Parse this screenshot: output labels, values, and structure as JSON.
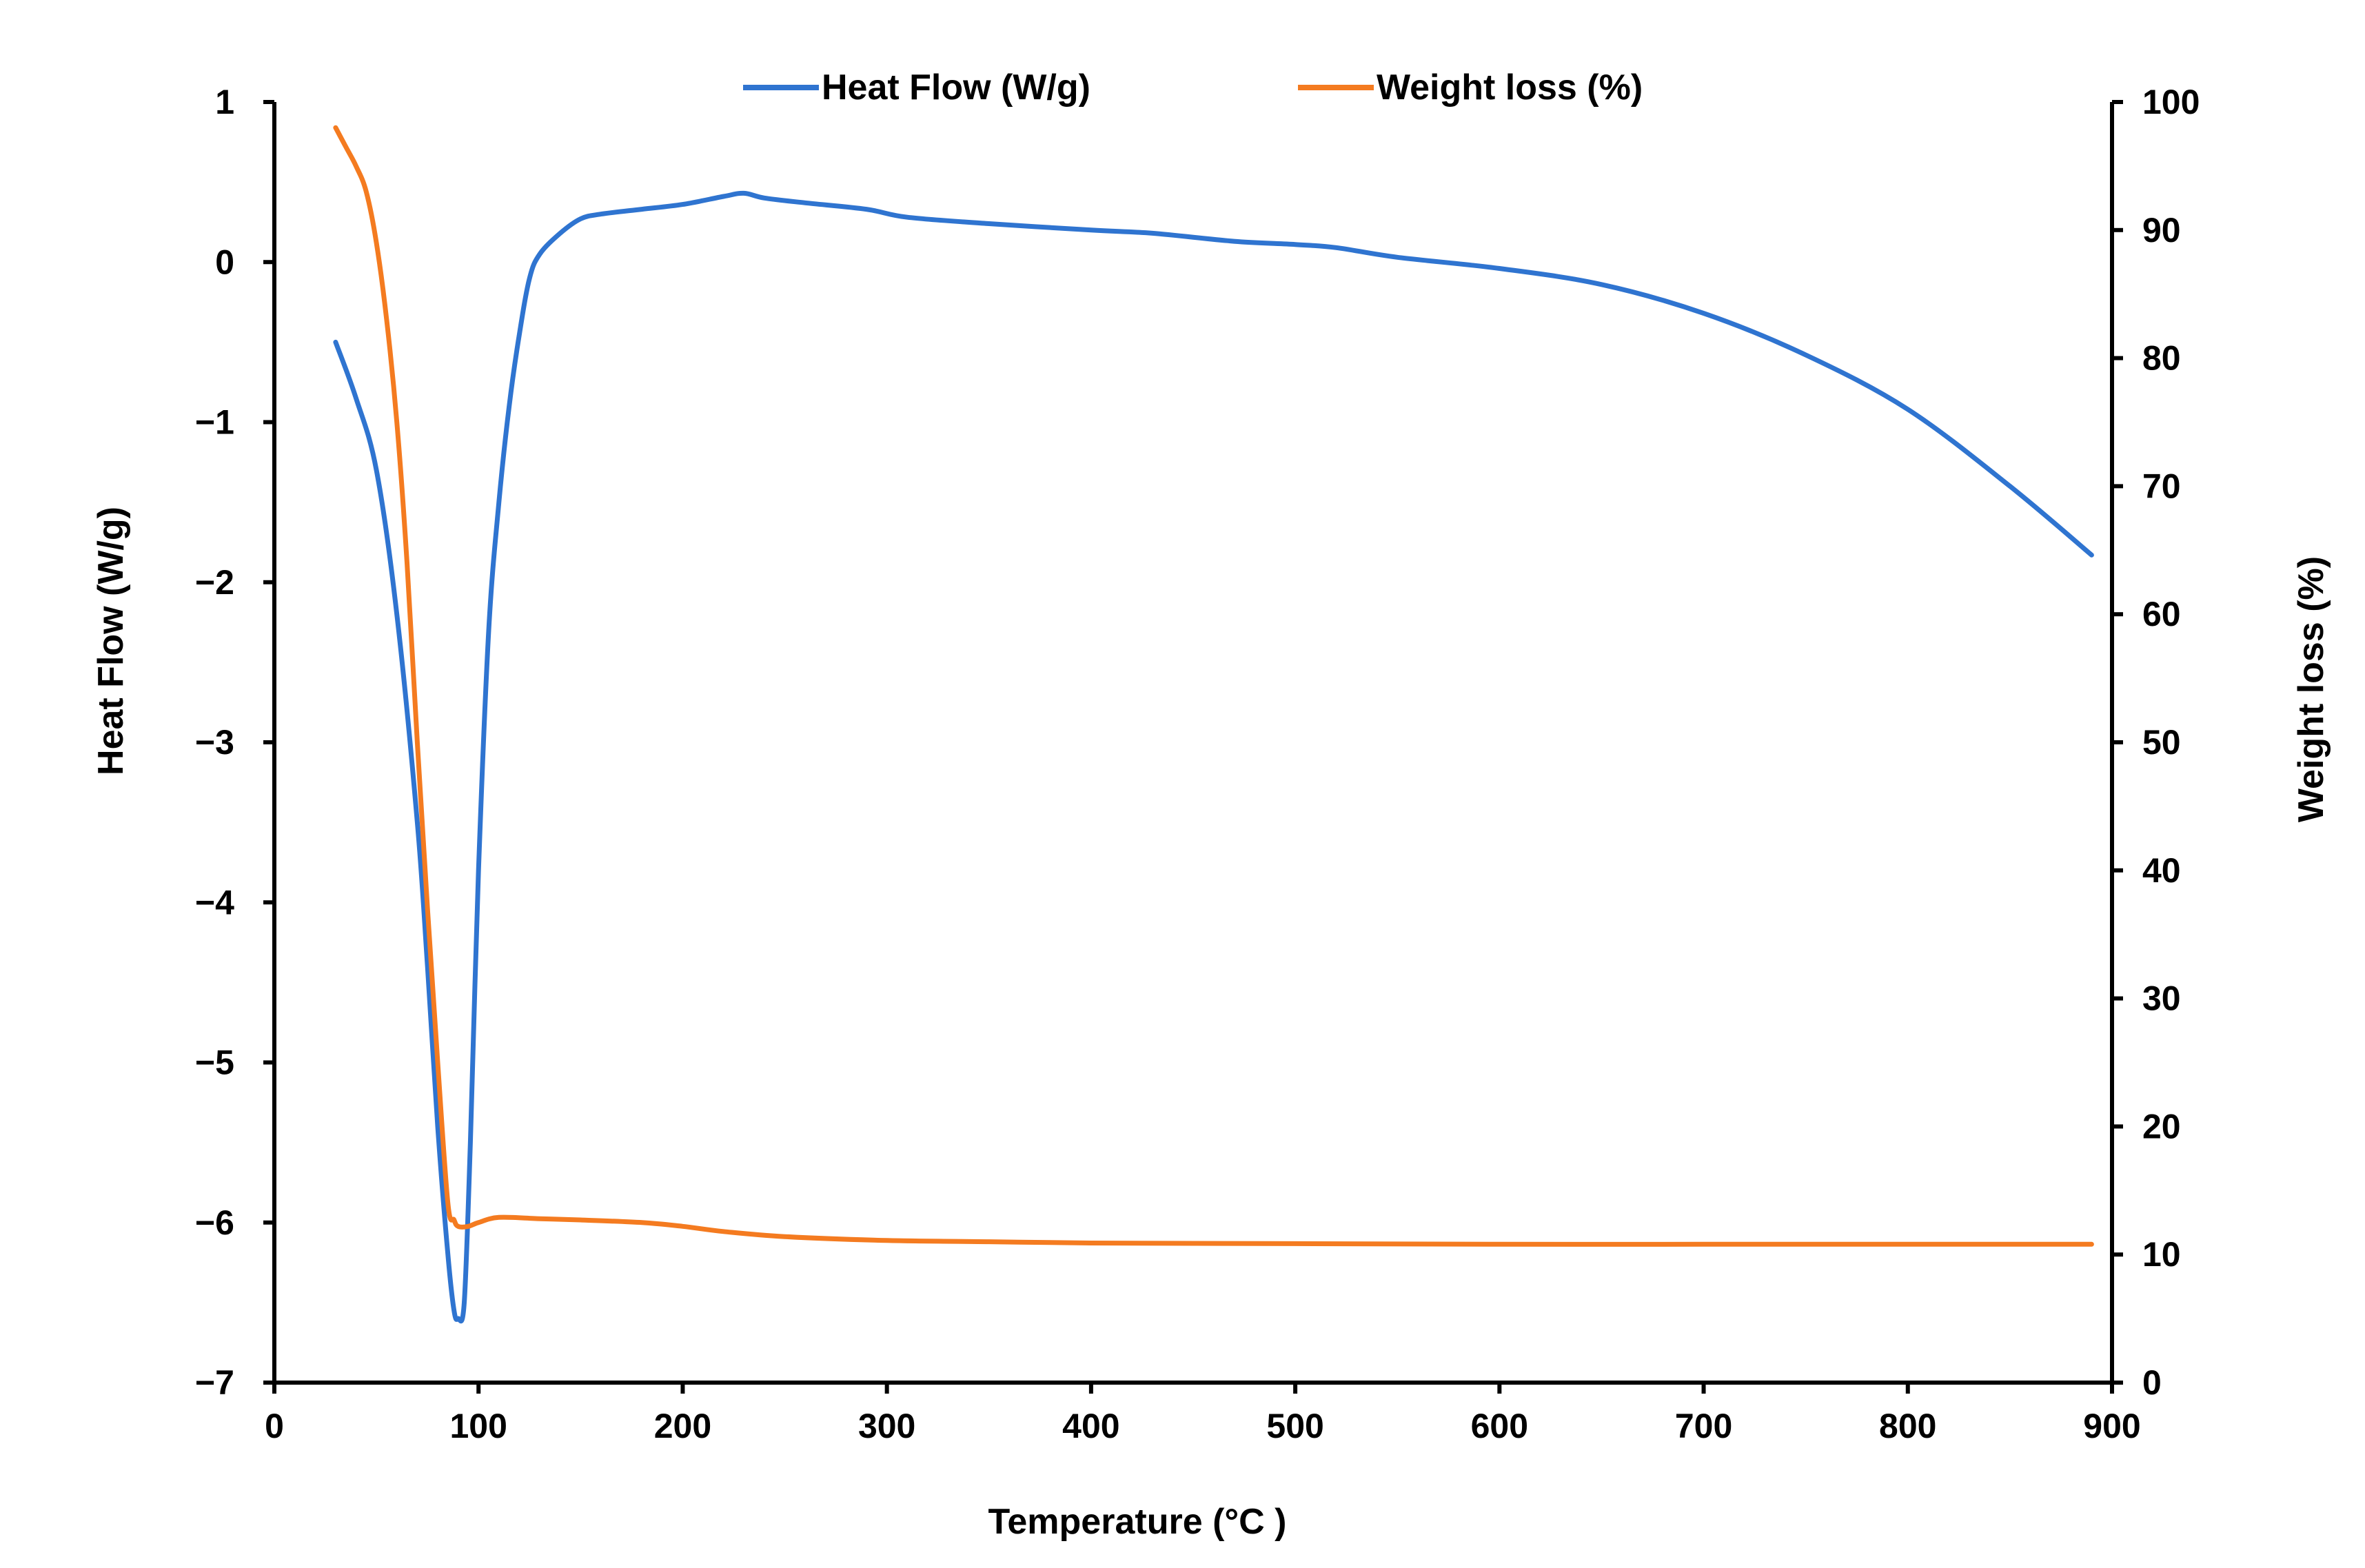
{
  "chart_data": {
    "type": "line",
    "title": "",
    "xlabel": "Temperature (°C )",
    "ylabel_left": "Heat Flow (W/g)",
    "ylabel_right": "Weight loss (%)",
    "xlim": [
      0,
      900
    ],
    "ylim_left": [
      -7,
      1
    ],
    "ylim_right": [
      0,
      100
    ],
    "x_ticks": [
      "0",
      "100",
      "200",
      "300",
      "400",
      "500",
      "600",
      "700",
      "800",
      "900"
    ],
    "y_left_ticks": [
      "1",
      "0",
      "−1",
      "−2",
      "−3",
      "−4",
      "−5",
      "−6",
      "−7"
    ],
    "y_right_ticks": [
      "100",
      "90",
      "80",
      "70",
      "60",
      "50",
      "40",
      "30",
      "20",
      "10",
      "0"
    ],
    "grid": false,
    "legend_position": "top-center",
    "series": [
      {
        "name": "Heat Flow (W/g)",
        "axis": "left",
        "color": "#2F74D0",
        "x": [
          30,
          40,
          50,
          60,
          70,
          75,
          80,
          85,
          88,
          90,
          93,
          96,
          100,
          105,
          110,
          115,
          120,
          125,
          130,
          140,
          150,
          160,
          180,
          200,
          220,
          230,
          240,
          260,
          290,
          310,
          350,
          400,
          430,
          470,
          500,
          520,
          550,
          600,
          650,
          700,
          750,
          800,
          850,
          890
        ],
        "values": [
          -0.5,
          -0.85,
          -1.3,
          -2.2,
          -3.5,
          -4.4,
          -5.4,
          -6.2,
          -6.55,
          -6.6,
          -6.5,
          -5.5,
          -3.8,
          -2.3,
          -1.5,
          -0.9,
          -0.45,
          -0.1,
          0.05,
          0.18,
          0.27,
          0.3,
          0.33,
          0.36,
          0.41,
          0.43,
          0.4,
          0.37,
          0.33,
          0.28,
          0.24,
          0.2,
          0.18,
          0.13,
          0.11,
          0.09,
          0.03,
          -0.04,
          -0.14,
          -0.32,
          -0.58,
          -0.92,
          -1.4,
          -1.83
        ]
      },
      {
        "name": "Weight loss (%)",
        "axis": "right",
        "color": "#F47B20",
        "x": [
          30,
          35,
          40,
          45,
          50,
          55,
          60,
          65,
          70,
          75,
          80,
          85,
          88,
          90,
          95,
          100,
          110,
          130,
          150,
          180,
          200,
          220,
          250,
          300,
          350,
          400,
          500,
          600,
          700,
          800,
          890
        ],
        "values": [
          98,
          96.5,
          95,
          93,
          89,
          83,
          75,
          64,
          50,
          37,
          25,
          14,
          12.7,
          12.2,
          12.2,
          12.5,
          12.9,
          12.8,
          12.7,
          12.5,
          12.2,
          11.8,
          11.4,
          11.1,
          11,
          10.9,
          10.85,
          10.8,
          10.8,
          10.8,
          10.8
        ]
      }
    ]
  }
}
